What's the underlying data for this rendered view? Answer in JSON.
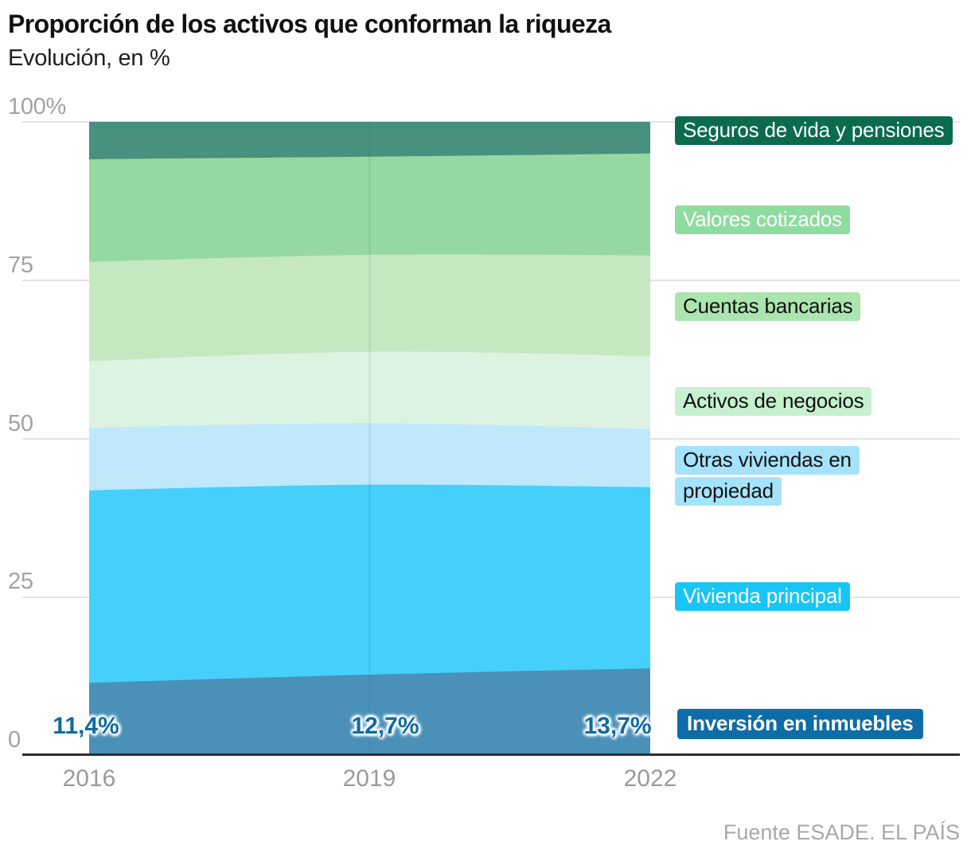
{
  "header": {
    "title": "Proporción de los activos que conforman la riqueza",
    "subtitle": "Evolución, en %"
  },
  "footer": {
    "source": "Fuente ESADE. EL PAÍS"
  },
  "colors": {
    "axis_line": "#2e2e2e",
    "gridline": "#e3e3e3",
    "tick_text": "#a2a2a2",
    "data_label_text": "#0d6ba5",
    "year_divider": "rgba(0,45,70,0.10)"
  },
  "chart_data": {
    "type": "area",
    "stacked": true,
    "title": "Proporción de los activos que conforman la riqueza",
    "subtitle": "Evolución, en %",
    "x": [
      2016,
      2019,
      2022
    ],
    "xtick_labels": [
      "2016",
      "2019",
      "2022"
    ],
    "ytick_labels": [
      "100%",
      "75",
      "50",
      "25",
      "0"
    ],
    "ylim": [
      0,
      100
    ],
    "grid": true,
    "legend_position": "right",
    "point_labels": [
      "11,4%",
      "12,7%",
      "13,7%"
    ],
    "series": [
      {
        "name": "Inversión en inmuebles",
        "values": [
          11.4,
          12.7,
          13.7
        ],
        "color": "#4a90b8"
      },
      {
        "name": "Vivienda principal",
        "values": [
          30.4,
          30.0,
          28.6
        ],
        "color": "#44d0fa"
      },
      {
        "name": "Otras viviendas en propiedad",
        "values": [
          9.9,
          9.7,
          9.2
        ],
        "color": "#bfe8fb"
      },
      {
        "name": "Activos de negocios",
        "values": [
          10.5,
          11.3,
          11.5
        ],
        "color": "#ddf3e2"
      },
      {
        "name": "Cuentas bancarias",
        "values": [
          15.7,
          15.3,
          15.9
        ],
        "color": "#c6e8c0"
      },
      {
        "name": "Valores cotizados",
        "values": [
          16.2,
          15.5,
          16.1
        ],
        "color": "#96d8a3"
      },
      {
        "name": "Seguros de vida y pensiones",
        "values": [
          5.9,
          5.5,
          5.0
        ],
        "color": "#48917e"
      }
    ]
  },
  "legend": {
    "items": [
      {
        "label": "Seguros de vida y pensiones",
        "bg": "#0b6b4d",
        "fg": "#ffffff"
      },
      {
        "label": "Valores cotizados",
        "bg": "#8edc9f",
        "fg": "#ffffff"
      },
      {
        "label": "Cuentas bancarias",
        "bg": "#abe5ae",
        "fg": "#111111"
      },
      {
        "label": "Activos de negocios",
        "bg": "#c6f0d0",
        "fg": "#111111"
      },
      {
        "label": "Otras viviendas en propiedad",
        "bg": "#a5e3fc",
        "fg": "#111111"
      },
      {
        "label": "Vivienda principal",
        "bg": "#18c5f7",
        "fg": "#ffffff"
      },
      {
        "label": "Inversión en inmuebles",
        "bg": "#0e6da7",
        "fg": "#ffffff"
      }
    ]
  }
}
